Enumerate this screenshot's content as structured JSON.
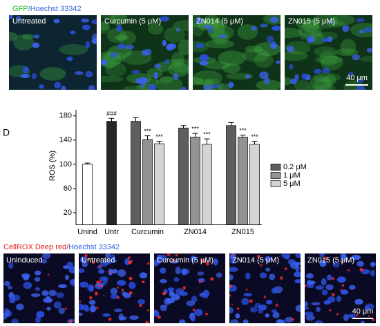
{
  "top_panel": {
    "label_parts": [
      "GFP/",
      "Hoechst 33342"
    ],
    "images": [
      {
        "label": "Untreated"
      },
      {
        "label": "Curcumin (5 μM)"
      },
      {
        "label": "ZN014 (5 μM)"
      },
      {
        "label": "ZN015 (5 μM)"
      }
    ],
    "scale_bar": "40 μm"
  },
  "panel_label": "D",
  "chart_data": {
    "type": "bar",
    "ylabel": "ROS (%)",
    "categories": [
      "Unind",
      "Untr",
      "Curcumin",
      "ZN014",
      "ZN015"
    ],
    "ylim": [
      0,
      190
    ],
    "yticks": [
      20,
      60,
      100,
      140,
      180
    ],
    "legend": "right",
    "series": [
      {
        "color": "#ffffff",
        "values": [
          100,
          null,
          null,
          null,
          null
        ],
        "errors": [
          2,
          null,
          null,
          null,
          null
        ],
        "significance": [
          null,
          null,
          null,
          null,
          null
        ]
      },
      {
        "color": "#262626",
        "values": [
          null,
          171,
          null,
          null,
          null
        ],
        "errors": [
          null,
          5,
          null,
          null,
          null
        ],
        "significance": [
          null,
          "###",
          null,
          null,
          null
        ]
      },
      {
        "name": "0.2 μM",
        "color": "#5e5e5e",
        "values": [
          null,
          null,
          171,
          160,
          164
        ],
        "errors": [
          null,
          null,
          6,
          4,
          5
        ],
        "significance": [
          null,
          null,
          null,
          null,
          null
        ]
      },
      {
        "name": "1 μM",
        "color": "#939393",
        "values": [
          null,
          null,
          141,
          145,
          145
        ],
        "errors": [
          null,
          null,
          6,
          6,
          3
        ],
        "significance": [
          null,
          null,
          "***",
          "***",
          "***"
        ]
      },
      {
        "name": "5 μM",
        "color": "#d4d4d4",
        "values": [
          null,
          null,
          134,
          133,
          133
        ],
        "errors": [
          null,
          null,
          4,
          9,
          5
        ],
        "significance": [
          null,
          null,
          "***",
          "***",
          "***"
        ]
      }
    ]
  },
  "bottom_panel": {
    "label_parts": [
      "CellROX Deep red/",
      "Hoechst 33342"
    ],
    "images": [
      {
        "label": "Uninduced"
      },
      {
        "label": "Untreated"
      },
      {
        "label": "Curcumin (5 μM)"
      },
      {
        "label": "ZN014 (5 μM)"
      },
      {
        "label": "ZN015 (5 μM)"
      }
    ],
    "scale_bar": "40 μm"
  }
}
